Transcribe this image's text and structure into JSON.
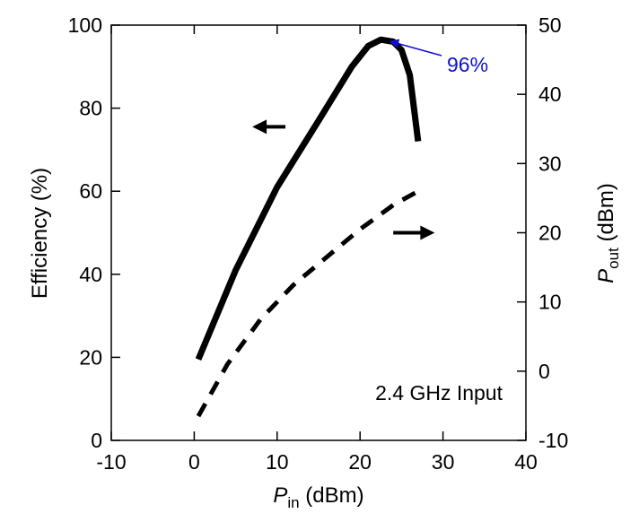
{
  "chart_data": {
    "type": "line",
    "title": "",
    "xlabel": {
      "main": "P",
      "sub": "in",
      "unit": " (dBm)"
    },
    "ylabel_left": "Efficiency (%)",
    "ylabel_right": {
      "main": "P",
      "sub": "out",
      "unit": " (dBm)"
    },
    "xlim": [
      -10,
      40
    ],
    "ylim_left": [
      0,
      100
    ],
    "ylim_right": [
      -10,
      50
    ],
    "x_ticks": [
      -10,
      0,
      10,
      20,
      30,
      40
    ],
    "y_ticks_left": [
      0,
      20,
      40,
      60,
      80,
      100
    ],
    "y_ticks_right": [
      -10,
      0,
      10,
      20,
      30,
      40,
      50
    ],
    "grid": false,
    "legend": "none",
    "series": [
      {
        "axis": "left",
        "style": "solid",
        "color": "#000000",
        "x": [
          0.5,
          5,
          10,
          15,
          19,
          21,
          22.5,
          24,
          25,
          26,
          27
        ],
        "y": [
          19.5,
          41,
          61,
          77,
          90,
          95,
          96.5,
          96,
          94,
          88,
          72
        ]
      },
      {
        "axis": "right",
        "style": "dashed",
        "color": "#000000",
        "x": [
          0.5,
          4,
          8,
          12,
          16,
          20,
          24,
          27
        ],
        "y": [
          -6.5,
          1,
          7.5,
          12.5,
          16.5,
          20.5,
          24,
          26
        ]
      }
    ],
    "annotations": {
      "peak_label": "96%",
      "peak_color": "#1010cc",
      "peak_point": {
        "x": 23.2,
        "y": 96.3
      },
      "input_label": "2.4 GHz Input",
      "left_arrow": {
        "x_from": 11,
        "x_to": 7,
        "y": 75.5,
        "axis": "left"
      },
      "right_arrow": {
        "x_from": 24,
        "x_to": 29,
        "y": 20,
        "axis": "right"
      }
    }
  }
}
